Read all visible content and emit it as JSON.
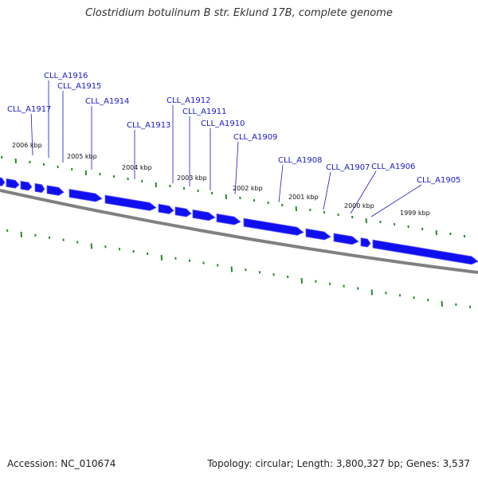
{
  "title": "Clostridium botulinum B str. Eklund 17B, complete genome",
  "footer": {
    "accession": "Accession: NC_010674",
    "topology": "Topology: circular; Length: 3,800,327 bp; Genes: 3,537"
  },
  "colors": {
    "gene_fill": "#1010ee",
    "gene_top": "#5a5aff",
    "backbone": "#808080",
    "tick": "#2a8a2a",
    "label": "#1818cc"
  },
  "genes": [
    {
      "name": "CLL_A1917",
      "gene_index": 2
    },
    {
      "name": "CLL_A1916",
      "gene_index": 3
    },
    {
      "name": "CLL_A1915",
      "gene_index": 4
    },
    {
      "name": "CLL_A1914",
      "gene_index": 5
    },
    {
      "name": "CLL_A1913",
      "gene_index": 6
    },
    {
      "name": "CLL_A1912",
      "gene_index": 7
    },
    {
      "name": "CLL_A1911",
      "gene_index": 8
    },
    {
      "name": "CLL_A1910",
      "gene_index": 9
    },
    {
      "name": "CLL_A1909",
      "gene_index": 10
    },
    {
      "name": "CLL_A1908",
      "gene_index": 11
    },
    {
      "name": "CLL_A1907",
      "gene_index": 12
    },
    {
      "name": "CLL_A1906",
      "gene_index": 13
    },
    {
      "name": "CLL_A1905",
      "gene_index": 14
    }
  ],
  "scale_labels": [
    "2006 kbp",
    "2005 kbp",
    "2004 kbp",
    "2003 kbp",
    "2002 kbp",
    "2001 kbp",
    "2000 kbp",
    "1999 kbp"
  ]
}
